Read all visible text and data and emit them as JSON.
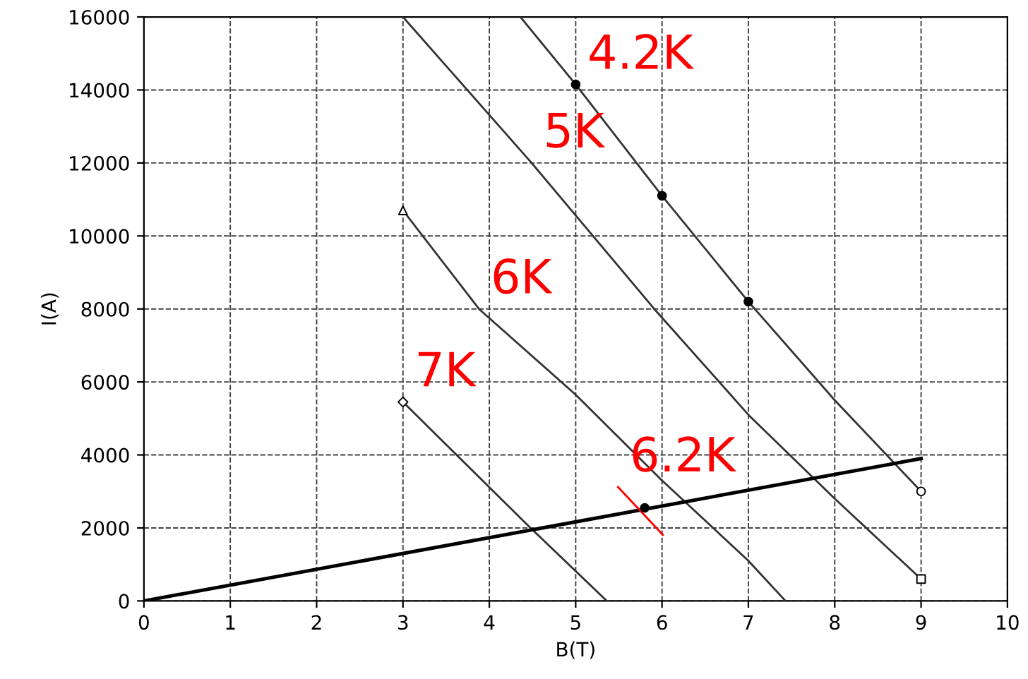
{
  "chart_data": {
    "type": "line",
    "xlabel": "B(T)",
    "ylabel": "I(A)",
    "xlim": [
      0,
      10
    ],
    "ylim": [
      0,
      16000
    ],
    "xticks": [
      0,
      1,
      2,
      3,
      4,
      5,
      6,
      7,
      8,
      9,
      10
    ],
    "yticks": [
      0,
      2000,
      4000,
      6000,
      8000,
      10000,
      12000,
      14000,
      16000
    ],
    "grid": true,
    "legend": false,
    "series": [
      {
        "color": "#333333",
        "x": [
          4.36,
          5,
          6,
          7,
          8,
          9
        ],
        "values": [
          16000,
          14150,
          11100,
          8200,
          5500,
          3000
        ]
      },
      {
        "color": "#333333",
        "x": [
          3.0,
          4.49,
          5.91,
          7,
          8,
          9
        ],
        "values": [
          16000,
          12000,
          8000,
          5100,
          2800,
          600
        ]
      },
      {
        "color": "#333333",
        "x": [
          3,
          3.88,
          5,
          6,
          7,
          7.43
        ],
        "values": [
          10700,
          8000,
          5650,
          3300,
          1100,
          0
        ]
      },
      {
        "color": "#333333",
        "x": [
          3,
          4.46,
          5.36
        ],
        "values": [
          5450,
          2040,
          0
        ]
      },
      {
        "color": "#000000",
        "x": [
          0,
          9
        ],
        "values": [
          0,
          3900
        ]
      },
      {
        "color": "#ff0000",
        "x": [
          5.49,
          6.01
        ],
        "values": [
          3120,
          1810
        ]
      },
      {
        "type": "scatter",
        "marker": "circle",
        "color": "#000000",
        "x": [
          5,
          6,
          7,
          5.8
        ],
        "values": [
          14150,
          11100,
          8200,
          2550
        ]
      },
      {
        "type": "scatter",
        "marker": "circle",
        "color": "#ffffff",
        "x": [
          9
        ],
        "values": [
          3000
        ]
      },
      {
        "type": "scatter",
        "marker": "square",
        "color": "#ffffff",
        "x": [
          9
        ],
        "values": [
          600
        ]
      },
      {
        "type": "scatter",
        "marker": "triangle",
        "color": "#ffffff",
        "x": [
          3
        ],
        "values": [
          10700
        ]
      },
      {
        "type": "scatter",
        "marker": "diamond",
        "color": "#ffffff",
        "x": [
          3
        ],
        "values": [
          5450
        ]
      }
    ],
    "annotations": [
      {
        "text": "4.2K",
        "x": 5,
        "y": 14150
      },
      {
        "text": "5K",
        "x": 4.49,
        "y": 12000
      },
      {
        "text": "6K",
        "x": 3.88,
        "y": 8000
      },
      {
        "text": "7K",
        "x": 3,
        "y": 5450
      },
      {
        "text": "6.2K",
        "x": 5.49,
        "y": 3120
      }
    ]
  }
}
